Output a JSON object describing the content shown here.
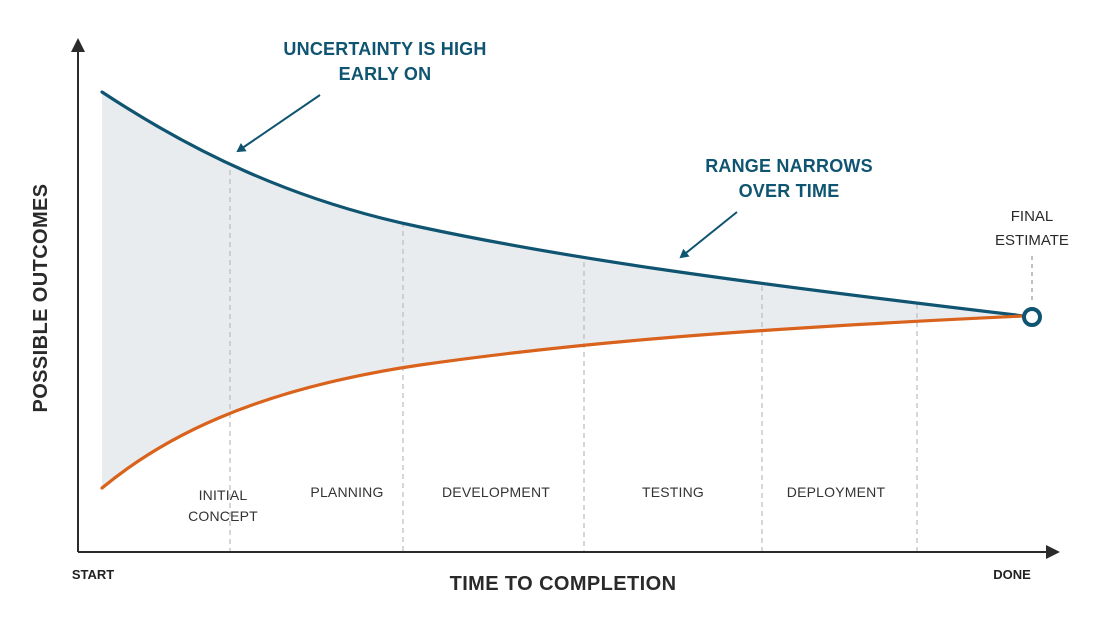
{
  "colors": {
    "upper_curve": "#0f5470",
    "lower_curve": "#d9621c",
    "band_fill": "#e9ecef",
    "callout_text": "#0f5470",
    "axis": "#2b2b2b",
    "phase_divider": "#b8bcc0"
  },
  "axes": {
    "y_title": "POSSIBLE OUTCOMES",
    "x_title": "TIME TO COMPLETION",
    "x_start": "START",
    "x_end": "DONE"
  },
  "callouts": {
    "high_line1": "UNCERTAINTY IS HIGH",
    "high_line2": "EARLY ON",
    "narrow_line1": "RANGE NARROWS",
    "narrow_line2": "OVER TIME"
  },
  "final": {
    "line1": "FINAL",
    "line2": "ESTIMATE"
  },
  "phases": {
    "initial_line1": "INITIAL",
    "initial_line2": "CONCEPT",
    "planning": "PLANNING",
    "development": "DEVELOPMENT",
    "testing": "TESTING",
    "deployment": "DEPLOYMENT"
  }
}
